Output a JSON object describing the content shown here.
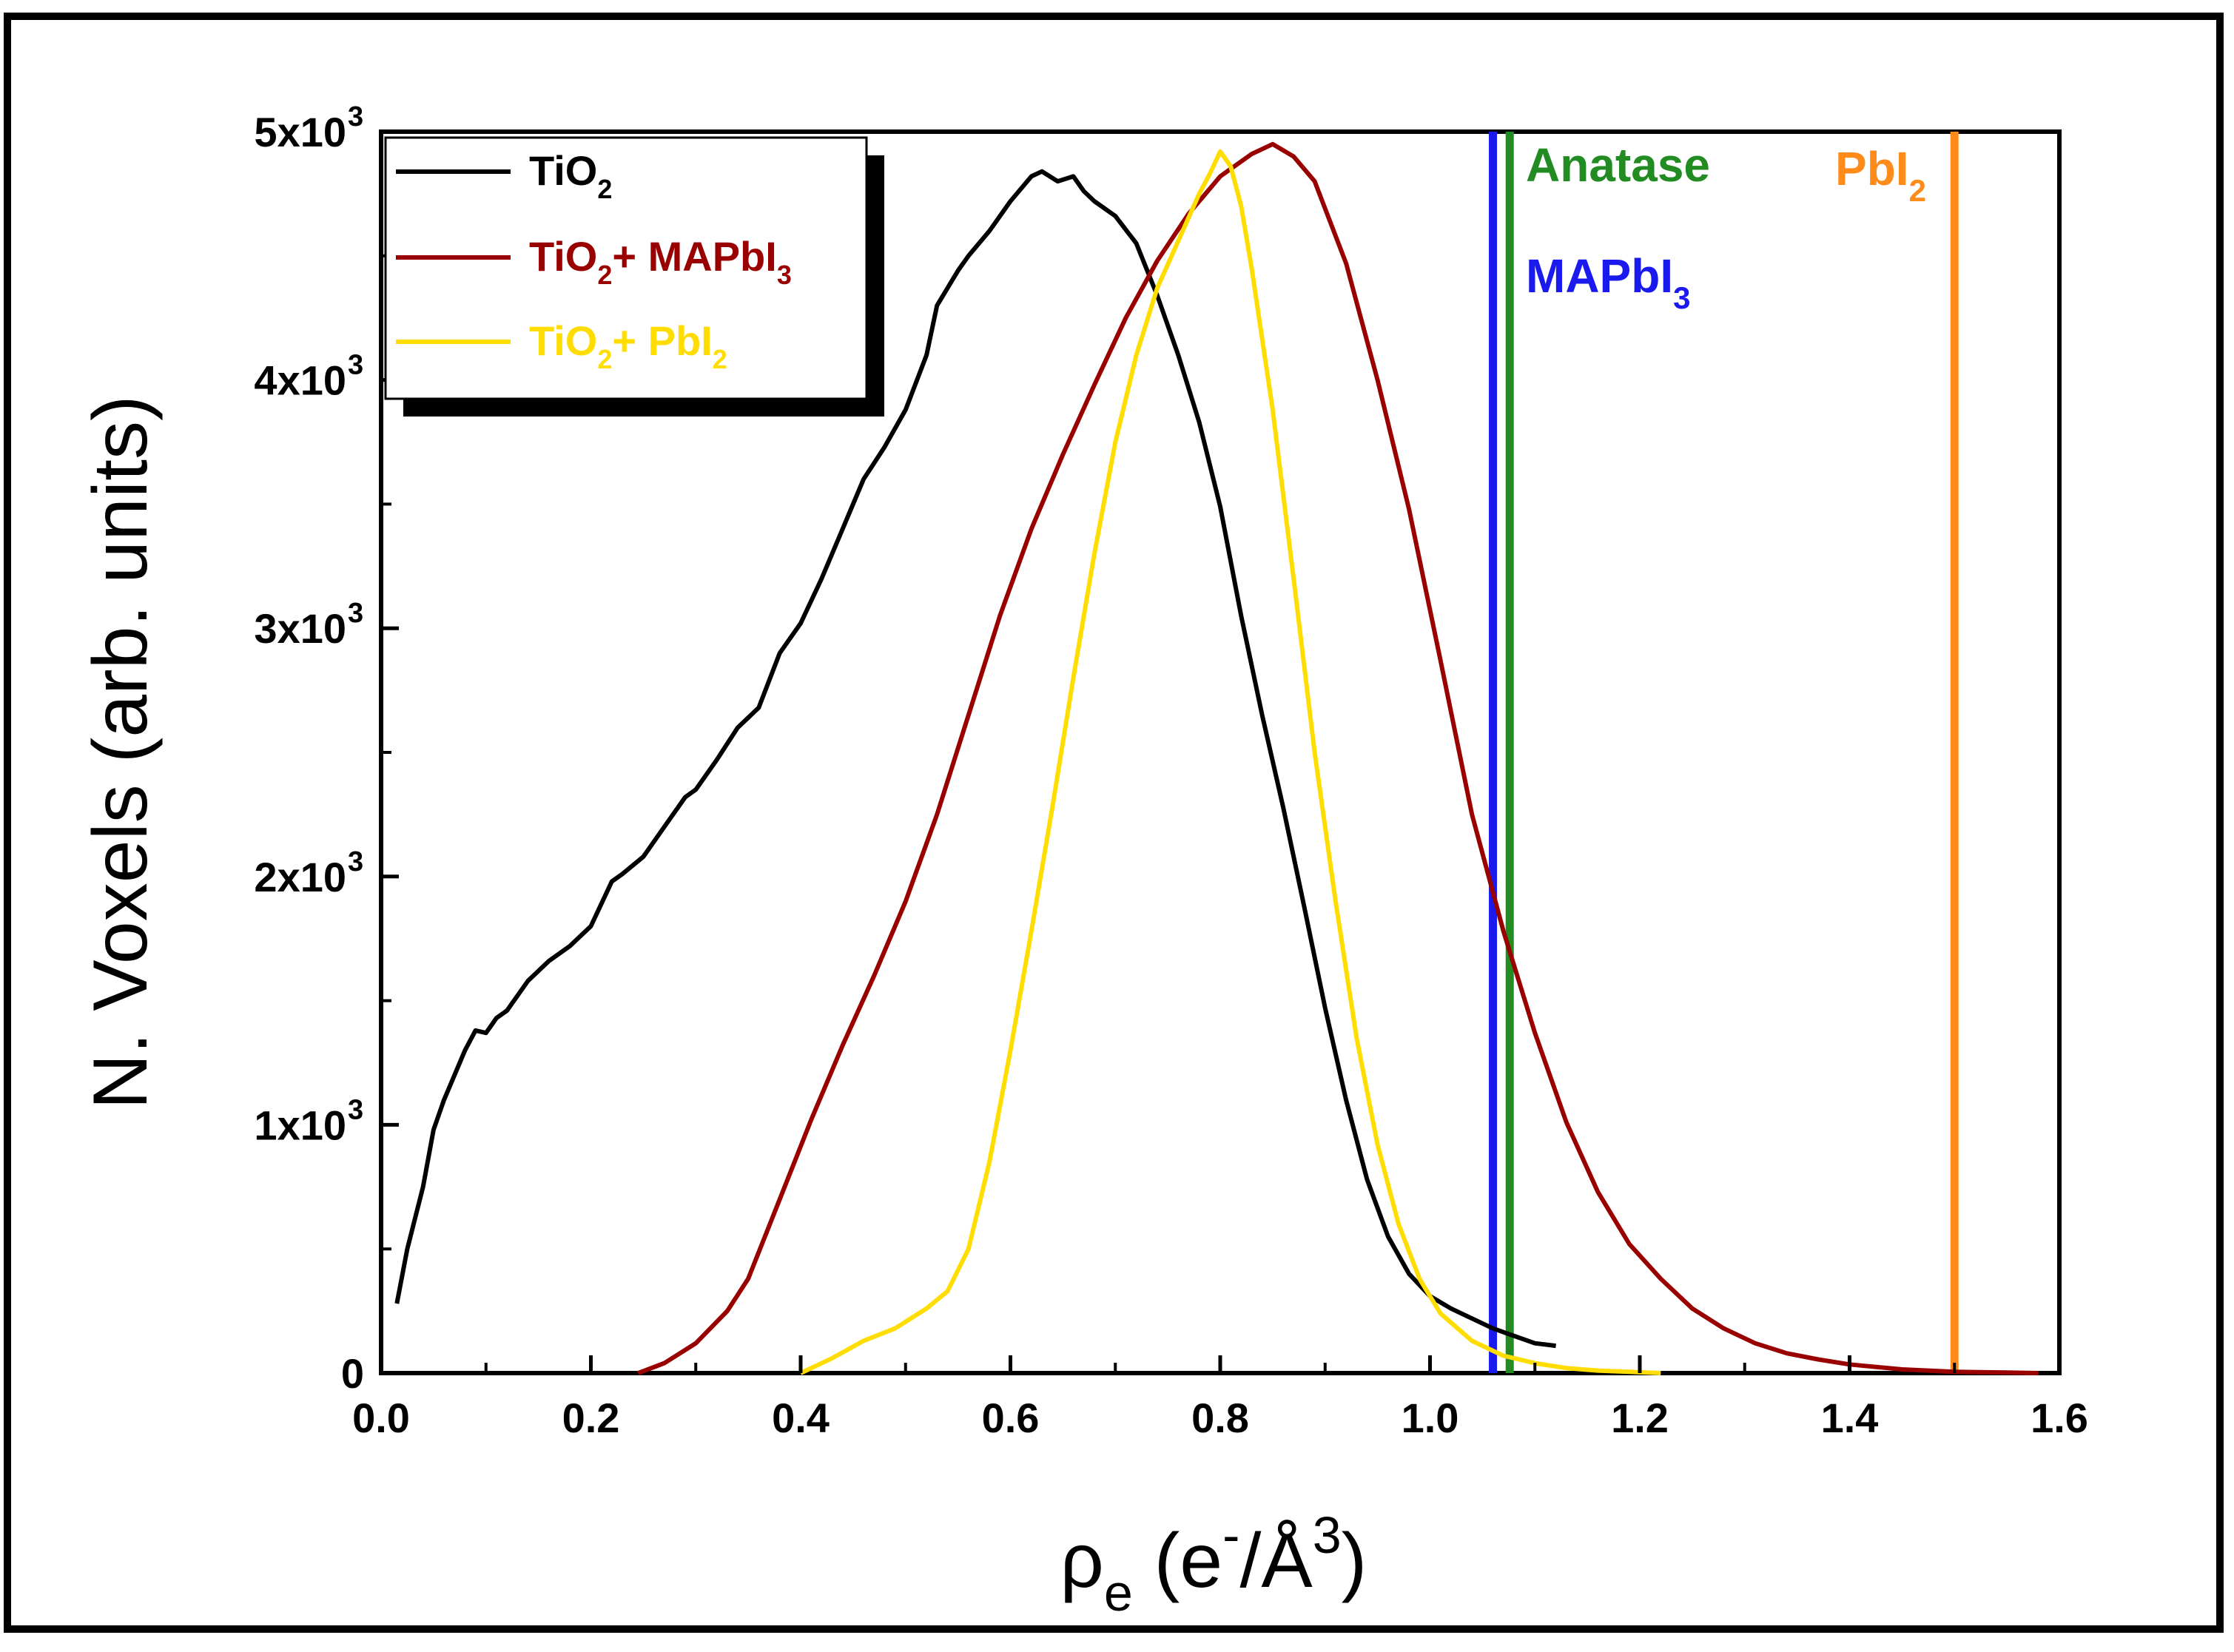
{
  "chart_data": {
    "type": "line",
    "xlabel": {
      "base": "ρ",
      "base_sub": "e",
      "paren_open": " (e",
      "sup1": "-",
      "mid": "/Å",
      "sup2": "3",
      "paren_close": ")"
    },
    "ylabel": "N. Voxels (arb. units)",
    "xlim": [
      0,
      1.6
    ],
    "ylim": [
      0,
      5000
    ],
    "grid": false,
    "legend_position": "top-left",
    "x_ticks": [
      {
        "value": 0.0,
        "label": "0.0"
      },
      {
        "value": 0.2,
        "label": "0.2"
      },
      {
        "value": 0.4,
        "label": "0.4"
      },
      {
        "value": 0.6,
        "label": "0.6"
      },
      {
        "value": 0.8,
        "label": "0.8"
      },
      {
        "value": 1.0,
        "label": "1.0"
      },
      {
        "value": 1.2,
        "label": "1.2"
      },
      {
        "value": 1.4,
        "label": "1.4"
      },
      {
        "value": 1.6,
        "label": "1.6"
      }
    ],
    "y_ticks": [
      {
        "value": 0,
        "label": "0",
        "exp": ""
      },
      {
        "value": 1000,
        "label": "1x10",
        "exp": "3"
      },
      {
        "value": 2000,
        "label": "2x10",
        "exp": "3"
      },
      {
        "value": 3000,
        "label": "3x10",
        "exp": "3"
      },
      {
        "value": 4000,
        "label": "4x10",
        "exp": "3"
      },
      {
        "value": 5000,
        "label": "5x10",
        "exp": "3"
      }
    ],
    "series": [
      {
        "name": "TiO2",
        "legend_main": "TiO",
        "legend_sub": "2",
        "legend_tail": "",
        "color": "#000000",
        "x": [
          0.015,
          0.025,
          0.04,
          0.05,
          0.06,
          0.07,
          0.08,
          0.09,
          0.1,
          0.11,
          0.12,
          0.14,
          0.16,
          0.18,
          0.2,
          0.22,
          0.23,
          0.25,
          0.27,
          0.29,
          0.3,
          0.32,
          0.34,
          0.36,
          0.38,
          0.4,
          0.42,
          0.44,
          0.46,
          0.48,
          0.5,
          0.52,
          0.53,
          0.55,
          0.56,
          0.58,
          0.6,
          0.62,
          0.63,
          0.645,
          0.66,
          0.67,
          0.68,
          0.7,
          0.72,
          0.74,
          0.76,
          0.78,
          0.8,
          0.82,
          0.84,
          0.86,
          0.88,
          0.9,
          0.92,
          0.94,
          0.96,
          0.98,
          1.0,
          1.02,
          1.04,
          1.06,
          1.08,
          1.1,
          1.12
        ],
        "values": [
          280,
          500,
          750,
          980,
          1100,
          1200,
          1300,
          1380,
          1370,
          1430,
          1460,
          1580,
          1660,
          1720,
          1800,
          1980,
          2010,
          2080,
          2200,
          2320,
          2350,
          2470,
          2600,
          2680,
          2900,
          3020,
          3200,
          3400,
          3600,
          3730,
          3880,
          4100,
          4300,
          4440,
          4500,
          4600,
          4720,
          4820,
          4840,
          4800,
          4820,
          4760,
          4720,
          4660,
          4550,
          4340,
          4100,
          3830,
          3490,
          3050,
          2650,
          2280,
          1880,
          1470,
          1100,
          780,
          550,
          400,
          310,
          260,
          220,
          180,
          150,
          120,
          110
        ]
      },
      {
        "name": "TiO2+ MAPbI3",
        "legend_main": "TiO",
        "legend_sub": "2",
        "legend_tail": "+ MAPbI",
        "legend_sub2": "3",
        "color": "#990000",
        "x": [
          0.245,
          0.27,
          0.3,
          0.33,
          0.35,
          0.38,
          0.41,
          0.44,
          0.47,
          0.5,
          0.53,
          0.56,
          0.59,
          0.62,
          0.65,
          0.68,
          0.71,
          0.74,
          0.77,
          0.8,
          0.83,
          0.85,
          0.87,
          0.89,
          0.92,
          0.95,
          0.98,
          1.01,
          1.04,
          1.07,
          1.1,
          1.13,
          1.16,
          1.19,
          1.22,
          1.25,
          1.28,
          1.31,
          1.34,
          1.37,
          1.4,
          1.45,
          1.5,
          1.55,
          1.58
        ],
        "values": [
          0,
          40,
          120,
          250,
          380,
          700,
          1020,
          1320,
          1600,
          1900,
          2250,
          2650,
          3050,
          3400,
          3700,
          3980,
          4250,
          4480,
          4670,
          4820,
          4910,
          4950,
          4900,
          4800,
          4470,
          4000,
          3480,
          2870,
          2250,
          1780,
          1370,
          1010,
          730,
          520,
          380,
          260,
          180,
          120,
          80,
          55,
          35,
          15,
          5,
          2,
          0
        ]
      },
      {
        "name": "TiO2+ PbI2",
        "legend_main": "TiO",
        "legend_sub": "2",
        "legend_tail": "+ PbI",
        "legend_sub2": "2",
        "color": "#ffdd00",
        "x": [
          0.4,
          0.43,
          0.46,
          0.49,
          0.52,
          0.54,
          0.56,
          0.58,
          0.6,
          0.62,
          0.64,
          0.66,
          0.68,
          0.7,
          0.72,
          0.74,
          0.76,
          0.78,
          0.79,
          0.8,
          0.81,
          0.82,
          0.83,
          0.85,
          0.87,
          0.89,
          0.91,
          0.93,
          0.95,
          0.97,
          0.99,
          1.01,
          1.04,
          1.07,
          1.1,
          1.13,
          1.16,
          1.19,
          1.22
        ],
        "values": [
          0,
          60,
          130,
          180,
          260,
          330,
          500,
          850,
          1300,
          1780,
          2280,
          2800,
          3300,
          3750,
          4100,
          4370,
          4560,
          4750,
          4830,
          4920,
          4860,
          4700,
          4450,
          3880,
          3200,
          2500,
          1900,
          1350,
          920,
          600,
          380,
          240,
          130,
          70,
          40,
          20,
          10,
          5,
          0
        ]
      }
    ],
    "reference_lines": [
      {
        "name": "MAPbI3",
        "x": 1.06,
        "color": "#1a1aee",
        "label": "MAPbI",
        "label_sub": "3"
      },
      {
        "name": "Anatase",
        "x": 1.076,
        "color": "#228b22",
        "label": "Anatase",
        "label_sub": ""
      },
      {
        "name": "PbI2",
        "x": 1.5,
        "color": "#ff8c1a",
        "label": "PbI",
        "label_sub": "2"
      }
    ]
  }
}
